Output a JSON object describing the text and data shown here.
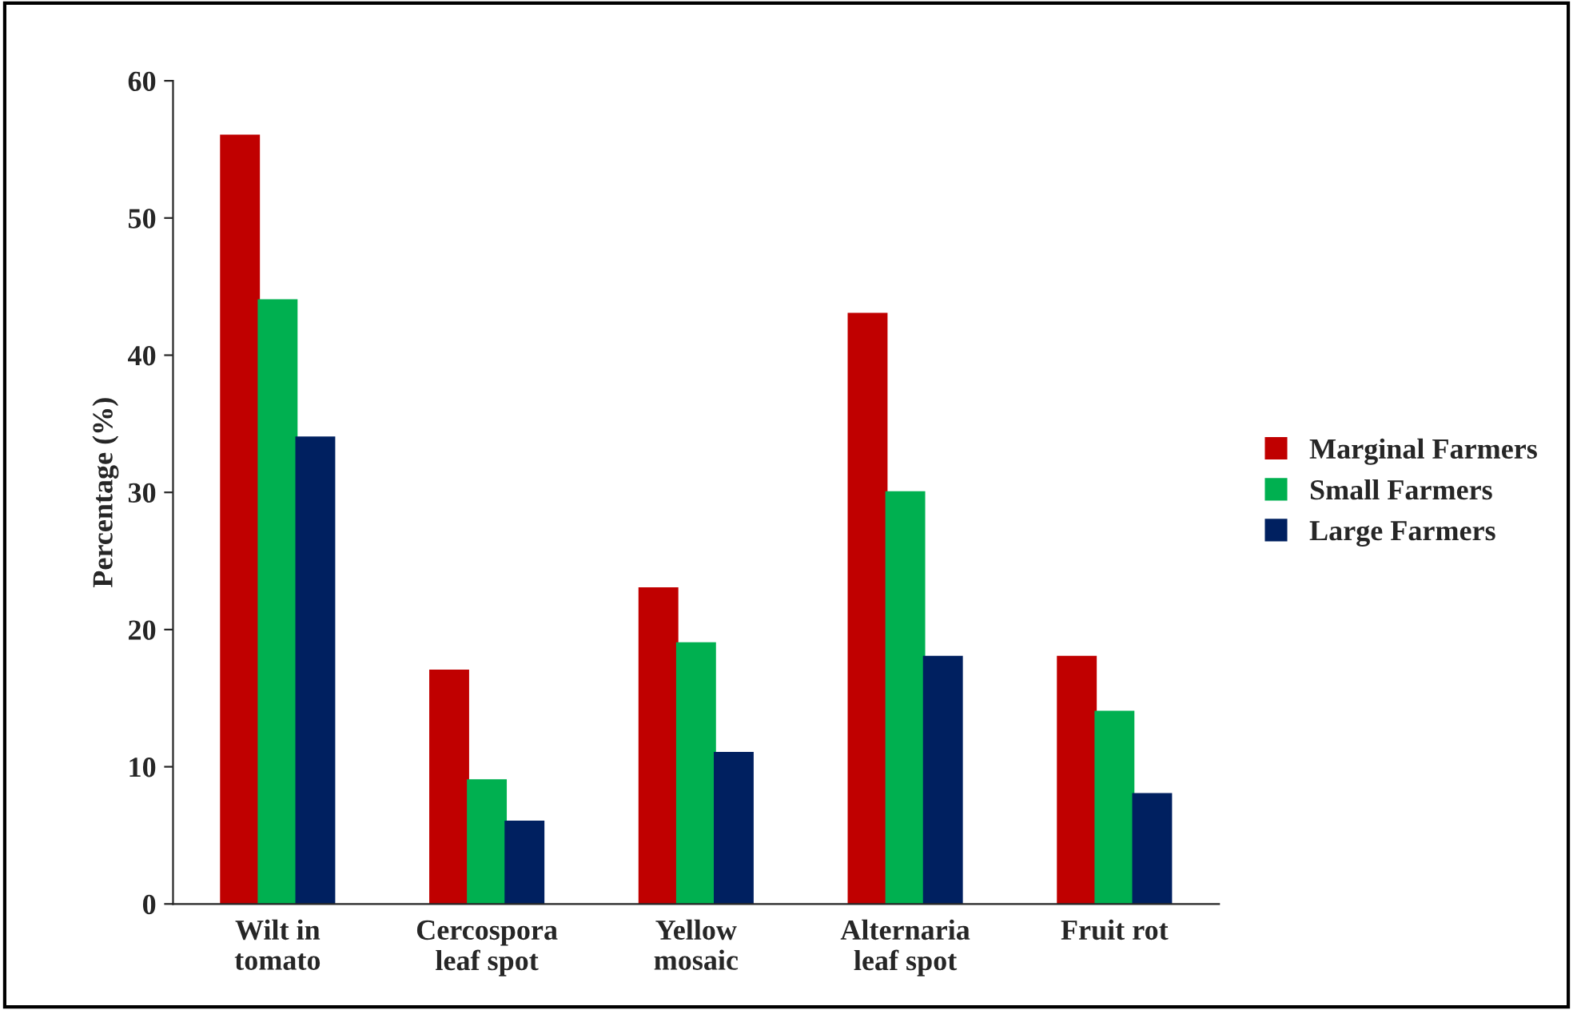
{
  "chart_data": {
    "type": "bar",
    "ylabel": "Percentage (%)",
    "categories": [
      "Wilt in\ntomato",
      "Cercospora\nleaf spot",
      "Yellow\nmosaic",
      "Alternaria\nleaf spot",
      "Fruit rot"
    ],
    "series": [
      {
        "name": "Marginal Farmers",
        "color": "#c00000",
        "values": [
          56,
          17,
          23,
          43,
          18
        ]
      },
      {
        "name": "Small Farmers",
        "color": "#00b050",
        "values": [
          44,
          9,
          19,
          30,
          14
        ]
      },
      {
        "name": "Large Farmers",
        "color": "#002060",
        "values": [
          34,
          6,
          11,
          18,
          8
        ]
      }
    ],
    "ylim": [
      0,
      60
    ],
    "yticks": [
      0,
      10,
      20,
      30,
      40,
      50,
      60
    ],
    "grid": false,
    "legend": "right"
  }
}
